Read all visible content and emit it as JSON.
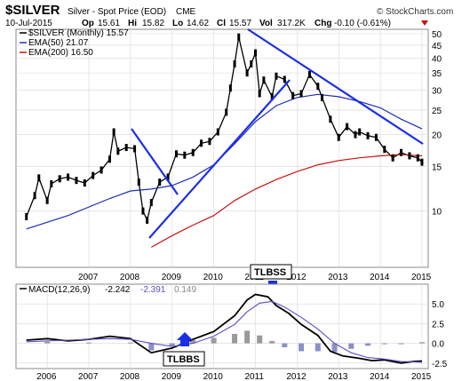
{
  "header": {
    "symbol": "$SILVER",
    "name": "Silver - Spot Price (EOD)",
    "exchange": "CME",
    "brand": "© StockCharts.com",
    "date": "10-Jul-2015",
    "op_label": "Op",
    "op": "15.61",
    "hi_label": "Hi",
    "hi": "15.82",
    "lo_label": "Lo",
    "lo": "14.62",
    "cl_label": "Cl",
    "cl": "15.57",
    "vol_label": "Vol",
    "vol": "317.2K",
    "chg_label": "Chg",
    "chg": "-0.10 (-0.61%)"
  },
  "legend": [
    {
      "label": "$SILVER (Monthly) 15.57",
      "color": "#000000"
    },
    {
      "label": "EMA(50) 21.07",
      "color": "#1f2fb0"
    },
    {
      "label": "EMA(200) 16.50",
      "color": "#cc1010"
    }
  ],
  "annotations": {
    "tlbss_top": "TLBSS",
    "tlbss_bottom": "TLBBS"
  },
  "macd_label": {
    "prefix": "MACD(12,26,9)",
    "v1": "-2.242",
    "v2": "-2.391",
    "v3": "0.149"
  },
  "colors": {
    "price": "#000000",
    "ema50": "#1f2fb0",
    "ema200": "#cc1010",
    "trendline": "#1a2ee8",
    "macd_line": "#000000",
    "macd_signal": "#5a4fc8",
    "hist_pos": "#9a9a9a",
    "hist_neg": "#8a90c8",
    "grid": "#d8d8d8"
  },
  "chart_data": [
    {
      "type": "line",
      "title": "$SILVER (Monthly)",
      "ylim": [
        6,
        52
      ],
      "y_scale": "log",
      "y_ticks": [
        50,
        45,
        40,
        35,
        30,
        25,
        20,
        15,
        10
      ],
      "x_ticks": [
        "2007",
        "2008",
        "2009",
        "2010",
        "2011",
        "2012",
        "2013",
        "2014",
        "2015"
      ],
      "grid": true,
      "legend_position": "top-left",
      "series": [
        {
          "name": "$SILVER (Monthly)",
          "x": [
            2006.0,
            2006.2,
            2006.3,
            2006.5,
            2006.6,
            2006.8,
            2007.0,
            2007.2,
            2007.4,
            2007.6,
            2007.8,
            2008.0,
            2008.1,
            2008.2,
            2008.4,
            2008.6,
            2008.7,
            2008.8,
            2008.9,
            2009.0,
            2009.2,
            2009.4,
            2009.6,
            2009.8,
            2010.0,
            2010.2,
            2010.4,
            2010.6,
            2010.8,
            2010.9,
            2011.0,
            2011.1,
            2011.3,
            2011.4,
            2011.5,
            2011.6,
            2011.7,
            2011.9,
            2012.0,
            2012.2,
            2012.4,
            2012.6,
            2012.8,
            2013.0,
            2013.1,
            2013.3,
            2013.5,
            2013.7,
            2013.9,
            2014.0,
            2014.2,
            2014.4,
            2014.6,
            2014.8,
            2015.0,
            2015.2,
            2015.4,
            2015.5
          ],
          "values": [
            9.5,
            11.5,
            13.5,
            11.0,
            12.8,
            13.4,
            13.6,
            13.2,
            12.9,
            13.8,
            14.5,
            16.0,
            20.5,
            17.2,
            17.8,
            17.6,
            13.0,
            10.0,
            9.2,
            10.8,
            13.0,
            13.6,
            16.8,
            16.6,
            17.0,
            18.5,
            18.8,
            20.5,
            24.5,
            30.5,
            38.0,
            48.5,
            35.0,
            38.0,
            42.0,
            29.0,
            32.8,
            28.2,
            34.0,
            33.0,
            28.5,
            29.0,
            34.5,
            31.0,
            28.0,
            23.0,
            19.5,
            21.5,
            20.0,
            20.5,
            19.8,
            19.5,
            17.5,
            16.2,
            17.0,
            16.5,
            16.2,
            15.57
          ]
        },
        {
          "name": "EMA(50)",
          "x": [
            2006.0,
            2007.0,
            2008.0,
            2008.5,
            2009.0,
            2009.5,
            2010.0,
            2010.5,
            2011.0,
            2011.5,
            2012.0,
            2012.5,
            2013.0,
            2013.5,
            2014.0,
            2014.5,
            2015.0,
            2015.5
          ],
          "values": [
            8.5,
            9.6,
            11.2,
            12.0,
            12.2,
            12.6,
            13.6,
            15.2,
            18.4,
            22.5,
            26.0,
            28.0,
            28.8,
            28.2,
            27.0,
            25.5,
            23.0,
            21.07
          ]
        },
        {
          "name": "EMA(200)",
          "x": [
            2009.0,
            2009.5,
            2010.0,
            2010.5,
            2011.0,
            2011.5,
            2012.0,
            2012.5,
            2013.0,
            2013.5,
            2014.0,
            2014.5,
            2015.0,
            2015.5
          ],
          "values": [
            7.2,
            8.0,
            8.8,
            9.6,
            11.0,
            12.2,
            13.3,
            14.3,
            15.2,
            15.8,
            16.2,
            16.5,
            16.7,
            16.5
          ]
        }
      ]
    },
    {
      "type": "line",
      "title": "MACD(12,26,9)",
      "ylim": [
        -3.2,
        7.5
      ],
      "y_ticks": [
        5.0,
        2.5,
        0.0,
        -2.5
      ],
      "x_ticks": [
        "2006",
        "2007",
        "2008",
        "2009",
        "2010",
        "2011",
        "2012",
        "2013",
        "2014",
        "2015"
      ],
      "series": [
        {
          "name": "MACD",
          "x": [
            2006.0,
            2006.5,
            2007.0,
            2007.5,
            2008.0,
            2008.5,
            2009.0,
            2009.5,
            2010.0,
            2010.5,
            2011.0,
            2011.3,
            2011.5,
            2011.8,
            2012.0,
            2012.3,
            2012.6,
            2013.0,
            2013.3,
            2013.6,
            2014.0,
            2014.3,
            2014.6,
            2015.0,
            2015.3,
            2015.5
          ],
          "values": [
            0.4,
            0.6,
            0.3,
            0.5,
            0.9,
            0.6,
            -1.2,
            -0.6,
            0.5,
            1.5,
            3.5,
            5.5,
            6.2,
            5.9,
            4.8,
            3.8,
            2.4,
            1.0,
            -1.0,
            -1.6,
            -1.9,
            -2.2,
            -2.1,
            -2.5,
            -2.3,
            -2.242
          ]
        },
        {
          "name": "Signal",
          "x": [
            2006.0,
            2007.0,
            2008.0,
            2008.5,
            2009.0,
            2009.5,
            2010.0,
            2010.5,
            2011.0,
            2011.3,
            2011.6,
            2011.9,
            2012.2,
            2012.6,
            2013.0,
            2013.4,
            2013.8,
            2014.2,
            2014.6,
            2015.0,
            2015.5
          ],
          "values": [
            0.2,
            0.4,
            0.6,
            0.5,
            0.0,
            -0.4,
            0.0,
            0.9,
            2.4,
            4.0,
            5.1,
            5.3,
            4.6,
            3.3,
            1.8,
            0.0,
            -1.2,
            -1.8,
            -2.0,
            -2.3,
            -2.391
          ]
        },
        {
          "name": "Histogram",
          "x": [
            2006.5,
            2007.5,
            2008.5,
            2009.0,
            2009.5,
            2010.0,
            2010.5,
            2011.0,
            2011.3,
            2011.6,
            2011.9,
            2012.2,
            2012.6,
            2013.0,
            2013.4,
            2013.8,
            2014.2,
            2014.6,
            2015.0,
            2015.5
          ],
          "values": [
            0.2,
            0.1,
            0.1,
            -0.9,
            -0.3,
            0.4,
            0.7,
            1.2,
            1.6,
            1.0,
            0.3,
            -0.5,
            -1.0,
            -1.0,
            -1.1,
            -0.7,
            -0.3,
            -0.1,
            -0.1,
            0.149
          ]
        }
      ]
    }
  ]
}
